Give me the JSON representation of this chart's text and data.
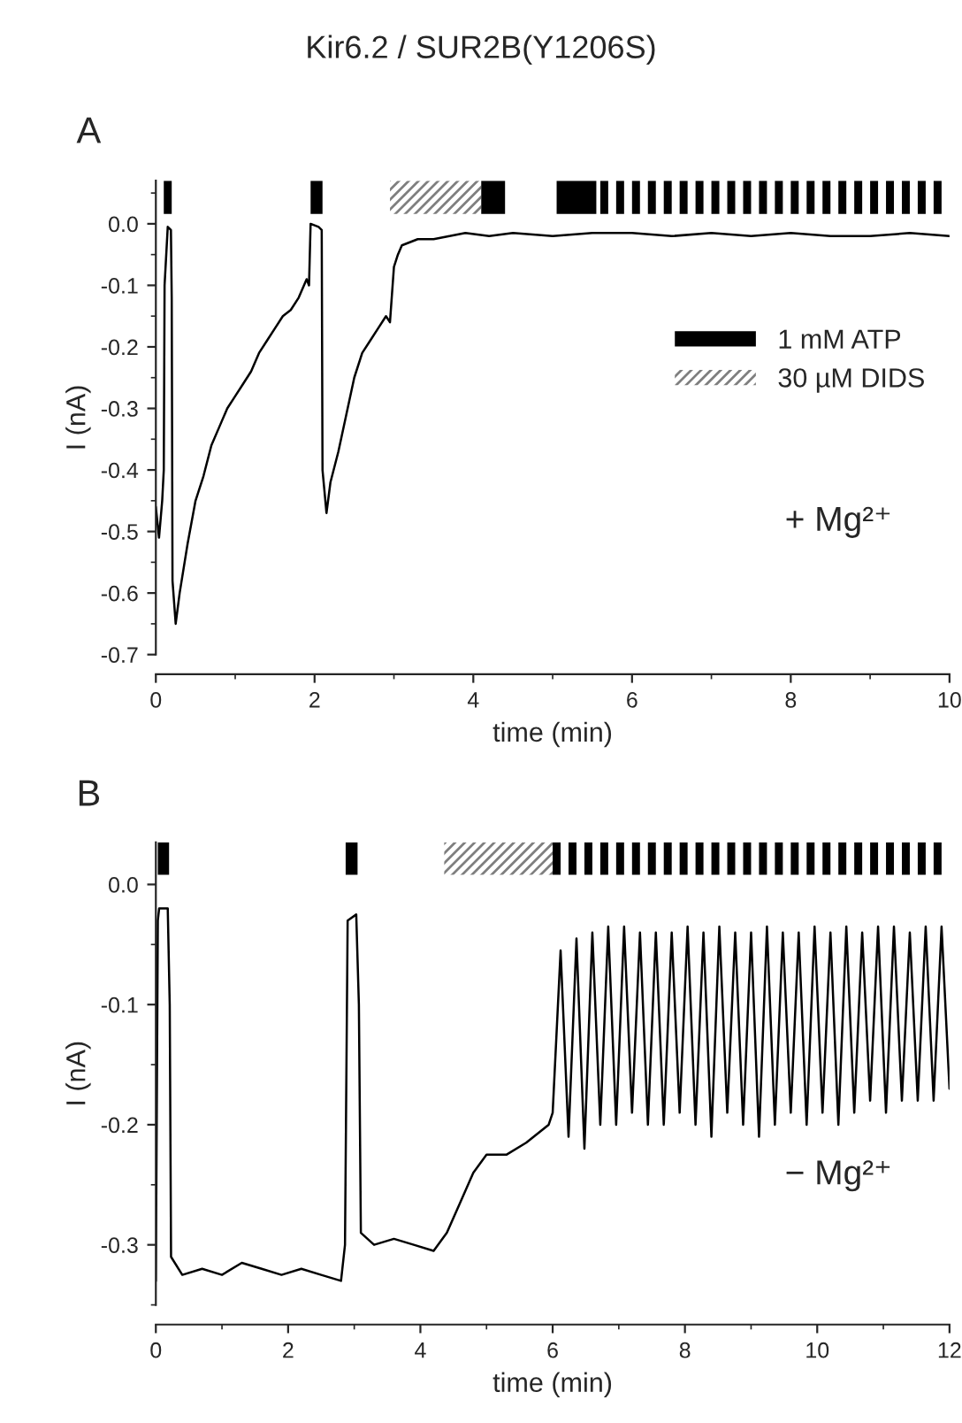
{
  "chart_data": [
    {
      "type": "line",
      "title": "Kir6.2 / SUR2B(Y1206S)",
      "xlabel": "time (min)",
      "ylabel": "I (nA)",
      "xlim": [
        0,
        10
      ],
      "xticks": [
        0,
        2,
        4,
        6,
        8,
        10
      ],
      "ylim": [
        -0.7,
        0.07
      ],
      "yticks": [
        {
          "value": 0.0,
          "label": "0.0"
        },
        {
          "value": -0.1,
          "label": "-0.1"
        },
        {
          "value": -0.2,
          "label": "-0.2"
        },
        {
          "value": -0.3,
          "label": "-0.3"
        },
        {
          "value": -0.4,
          "label": "-0.4"
        },
        {
          "value": -0.5,
          "label": "-0.5"
        },
        {
          "value": -0.6,
          "label": "-0.6"
        },
        {
          "value": -0.7,
          "label": "-0.7"
        }
      ],
      "grid": false,
      "legend": "right",
      "series": [
        {
          "color": "#000000",
          "x": [
            0,
            0.04,
            0.08,
            0.1,
            0.11,
            0.15,
            0.19,
            0.2,
            0.21,
            0.25,
            0.3,
            0.4,
            0.5,
            0.6,
            0.7,
            0.8,
            0.9,
            1.0,
            1.1,
            1.2,
            1.3,
            1.4,
            1.5,
            1.6,
            1.7,
            1.8,
            1.9,
            1.93,
            1.95,
            2.05,
            2.09,
            2.1,
            2.15,
            2.2,
            2.3,
            2.4,
            2.5,
            2.6,
            2.7,
            2.8,
            2.9,
            2.95,
            3.0,
            3.05,
            3.1,
            3.2,
            3.3,
            3.5,
            3.7,
            3.9,
            4.2,
            4.5,
            5.0,
            5.5,
            6.0,
            6.5,
            7.0,
            7.5,
            8.0,
            8.5,
            9.0,
            9.5,
            10.0
          ],
          "values": [
            -0.46,
            -0.51,
            -0.45,
            -0.4,
            -0.1,
            -0.005,
            -0.01,
            -0.12,
            -0.58,
            -0.65,
            -0.6,
            -0.52,
            -0.45,
            -0.41,
            -0.36,
            -0.33,
            -0.3,
            -0.28,
            -0.26,
            -0.24,
            -0.21,
            -0.19,
            -0.17,
            -0.15,
            -0.14,
            -0.12,
            -0.09,
            -0.1,
            0.0,
            -0.005,
            -0.01,
            -0.4,
            -0.47,
            -0.42,
            -0.37,
            -0.31,
            -0.25,
            -0.21,
            -0.19,
            -0.17,
            -0.15,
            -0.16,
            -0.07,
            -0.05,
            -0.035,
            -0.03,
            -0.025,
            -0.025,
            -0.02,
            -0.015,
            -0.02,
            -0.015,
            -0.02,
            -0.015,
            -0.015,
            -0.02,
            -0.015,
            -0.02,
            -0.015,
            -0.02,
            -0.02,
            -0.015,
            -0.02
          ]
        }
      ],
      "bands": [
        {
          "axis": "x",
          "from": 0.1,
          "to": 0.2,
          "label": "1 mM ATP",
          "color": "#000000"
        },
        {
          "axis": "x",
          "from": 1.95,
          "to": 2.1,
          "color": "#000000"
        },
        {
          "axis": "x",
          "from": 2.95,
          "to": 4.1,
          "label": "30 µM DIDS",
          "color": "#7f7f7f"
        },
        {
          "axis": "x",
          "from": 4.1,
          "to": 4.4,
          "color": "#000000"
        },
        {
          "axis": "x",
          "from": 5.05,
          "to": 5.55,
          "color": "#000000"
        },
        {
          "axis": "x",
          "from": 5.6,
          "to": 5.7,
          "color": "#000000"
        },
        {
          "axis": "x",
          "from": 5.8,
          "to": 5.9,
          "color": "#000000"
        },
        {
          "axis": "x",
          "from": 6.0,
          "to": 6.1,
          "color": "#000000"
        },
        {
          "axis": "x",
          "from": 6.2,
          "to": 6.3,
          "color": "#000000"
        },
        {
          "axis": "x",
          "from": 6.4,
          "to": 6.5,
          "color": "#000000"
        },
        {
          "axis": "x",
          "from": 6.6,
          "to": 6.7,
          "color": "#000000"
        },
        {
          "axis": "x",
          "from": 6.8,
          "to": 6.9,
          "color": "#000000"
        },
        {
          "axis": "x",
          "from": 7.0,
          "to": 7.1,
          "color": "#000000"
        },
        {
          "axis": "x",
          "from": 7.2,
          "to": 7.3,
          "color": "#000000"
        },
        {
          "axis": "x",
          "from": 7.4,
          "to": 7.5,
          "color": "#000000"
        },
        {
          "axis": "x",
          "from": 7.6,
          "to": 7.7,
          "color": "#000000"
        },
        {
          "axis": "x",
          "from": 7.8,
          "to": 7.9,
          "color": "#000000"
        },
        {
          "axis": "x",
          "from": 8.0,
          "to": 8.1,
          "color": "#000000"
        },
        {
          "axis": "x",
          "from": 8.2,
          "to": 8.3,
          "color": "#000000"
        },
        {
          "axis": "x",
          "from": 8.4,
          "to": 8.5,
          "color": "#000000"
        },
        {
          "axis": "x",
          "from": 8.6,
          "to": 8.7,
          "color": "#000000"
        },
        {
          "axis": "x",
          "from": 8.8,
          "to": 8.9,
          "color": "#000000"
        },
        {
          "axis": "x",
          "from": 9.0,
          "to": 9.1,
          "color": "#000000"
        },
        {
          "axis": "x",
          "from": 9.2,
          "to": 9.3,
          "color": "#000000"
        },
        {
          "axis": "x",
          "from": 9.4,
          "to": 9.5,
          "color": "#000000"
        },
        {
          "axis": "x",
          "from": 9.6,
          "to": 9.7,
          "color": "#000000"
        },
        {
          "axis": "x",
          "from": 9.8,
          "to": 9.9,
          "color": "#000000"
        }
      ],
      "annotations": [
        "A",
        "+ Mg²⁺"
      ]
    },
    {
      "type": "line",
      "xlabel": "time (min)",
      "ylabel": "I (nA)",
      "xlim": [
        0,
        12
      ],
      "xticks": [
        0,
        2,
        4,
        6,
        8,
        10,
        12
      ],
      "ylim": [
        -0.35,
        0.035
      ],
      "yticks": [
        {
          "value": 0.0,
          "label": "0.0"
        },
        {
          "value": -0.1,
          "label": "-0.1"
        },
        {
          "value": -0.2,
          "label": "-0.2"
        },
        {
          "value": -0.3,
          "label": "-0.3"
        }
      ],
      "grid": false,
      "series": [
        {
          "color": "#000000",
          "x": [
            0,
            0.03,
            0.05,
            0.18,
            0.21,
            0.23,
            0.4,
            0.7,
            1.0,
            1.3,
            1.6,
            1.9,
            2.2,
            2.5,
            2.8,
            2.86,
            2.9,
            3.03,
            3.07,
            3.1,
            3.3,
            3.6,
            3.9,
            4.2,
            4.4,
            4.6,
            4.8,
            5.0,
            5.3,
            5.6,
            5.94,
            6.0,
            6.12,
            6.24,
            6.36,
            6.48,
            6.6,
            6.72,
            6.84,
            6.96,
            7.08,
            7.2,
            7.32,
            7.44,
            7.56,
            7.68,
            7.8,
            7.92,
            8.04,
            8.16,
            8.28,
            8.4,
            8.52,
            8.64,
            8.76,
            8.88,
            9.0,
            9.12,
            9.24,
            9.36,
            9.48,
            9.6,
            9.72,
            9.84,
            9.96,
            10.08,
            10.2,
            10.32,
            10.44,
            10.56,
            10.68,
            10.8,
            10.92,
            11.04,
            11.16,
            11.28,
            11.4,
            11.52,
            11.64,
            11.76,
            11.88,
            12.0
          ],
          "values": [
            -0.33,
            -0.03,
            -0.02,
            -0.02,
            -0.1,
            -0.31,
            -0.325,
            -0.32,
            -0.325,
            -0.315,
            -0.32,
            -0.325,
            -0.32,
            -0.325,
            -0.33,
            -0.3,
            -0.03,
            -0.025,
            -0.1,
            -0.29,
            -0.3,
            -0.295,
            -0.3,
            -0.305,
            -0.29,
            -0.265,
            -0.24,
            -0.225,
            -0.225,
            -0.215,
            -0.2,
            -0.19,
            -0.055,
            -0.21,
            -0.045,
            -0.22,
            -0.04,
            -0.2,
            -0.035,
            -0.2,
            -0.035,
            -0.19,
            -0.04,
            -0.2,
            -0.04,
            -0.2,
            -0.04,
            -0.19,
            -0.035,
            -0.2,
            -0.04,
            -0.21,
            -0.035,
            -0.19,
            -0.04,
            -0.2,
            -0.04,
            -0.21,
            -0.035,
            -0.2,
            -0.04,
            -0.19,
            -0.04,
            -0.2,
            -0.035,
            -0.19,
            -0.04,
            -0.2,
            -0.035,
            -0.19,
            -0.04,
            -0.18,
            -0.035,
            -0.19,
            -0.035,
            -0.18,
            -0.04,
            -0.18,
            -0.035,
            -0.18,
            -0.035,
            -0.17
          ]
        }
      ],
      "bands": [
        {
          "axis": "x",
          "from": 0.03,
          "to": 0.2,
          "color": "#000000"
        },
        {
          "axis": "x",
          "from": 2.87,
          "to": 3.05,
          "color": "#000000"
        },
        {
          "axis": "x",
          "from": 4.36,
          "to": 6.0,
          "color": "#7f7f7f"
        },
        {
          "axis": "x",
          "from": 6.0,
          "to": 6.12,
          "color": "#000000"
        },
        {
          "axis": "x",
          "from": 6.24,
          "to": 6.36,
          "color": "#000000"
        },
        {
          "axis": "x",
          "from": 6.48,
          "to": 6.6,
          "color": "#000000"
        },
        {
          "axis": "x",
          "from": 6.72,
          "to": 6.84,
          "color": "#000000"
        },
        {
          "axis": "x",
          "from": 6.96,
          "to": 7.08,
          "color": "#000000"
        },
        {
          "axis": "x",
          "from": 7.2,
          "to": 7.32,
          "color": "#000000"
        },
        {
          "axis": "x",
          "from": 7.44,
          "to": 7.56,
          "color": "#000000"
        },
        {
          "axis": "x",
          "from": 7.68,
          "to": 7.8,
          "color": "#000000"
        },
        {
          "axis": "x",
          "from": 7.92,
          "to": 8.04,
          "color": "#000000"
        },
        {
          "axis": "x",
          "from": 8.16,
          "to": 8.28,
          "color": "#000000"
        },
        {
          "axis": "x",
          "from": 8.4,
          "to": 8.52,
          "color": "#000000"
        },
        {
          "axis": "x",
          "from": 8.64,
          "to": 8.76,
          "color": "#000000"
        },
        {
          "axis": "x",
          "from": 8.88,
          "to": 9.0,
          "color": "#000000"
        },
        {
          "axis": "x",
          "from": 9.12,
          "to": 9.24,
          "color": "#000000"
        },
        {
          "axis": "x",
          "from": 9.36,
          "to": 9.48,
          "color": "#000000"
        },
        {
          "axis": "x",
          "from": 9.6,
          "to": 9.72,
          "color": "#000000"
        },
        {
          "axis": "x",
          "from": 9.84,
          "to": 9.96,
          "color": "#000000"
        },
        {
          "axis": "x",
          "from": 10.08,
          "to": 10.2,
          "color": "#000000"
        },
        {
          "axis": "x",
          "from": 10.32,
          "to": 10.44,
          "color": "#000000"
        },
        {
          "axis": "x",
          "from": 10.56,
          "to": 10.68,
          "color": "#000000"
        },
        {
          "axis": "x",
          "from": 10.8,
          "to": 10.92,
          "color": "#000000"
        },
        {
          "axis": "x",
          "from": 11.04,
          "to": 11.16,
          "color": "#000000"
        },
        {
          "axis": "x",
          "from": 11.28,
          "to": 11.4,
          "color": "#000000"
        },
        {
          "axis": "x",
          "from": 11.52,
          "to": 11.64,
          "color": "#000000"
        },
        {
          "axis": "x",
          "from": 11.76,
          "to": 11.88,
          "color": "#000000"
        }
      ],
      "annotations": [
        "B",
        "− Mg²⁺"
      ]
    }
  ]
}
